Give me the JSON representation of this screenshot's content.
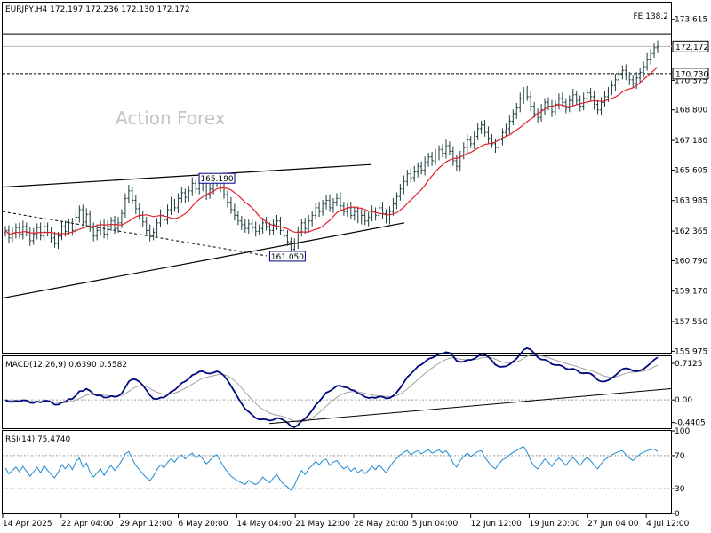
{
  "chart_data": [
    {
      "type": "candlestick",
      "symbol_label": "EURJPY,H4",
      "ohlc": {
        "open": "172.197",
        "high": "172.236",
        "low": "172.130",
        "close": "172.172"
      },
      "watermark": "Action Forex",
      "fe_label": "FE 138.2",
      "y_ticks": [
        "173.615",
        "170.375",
        "168.800",
        "167.180",
        "165.605",
        "163.985",
        "162.365",
        "160.790",
        "159.170",
        "157.550",
        "155.975"
      ],
      "y_tick_values": [
        173.615,
        170.375,
        168.8,
        167.18,
        165.605,
        163.985,
        162.365,
        160.79,
        159.17,
        157.55,
        155.975
      ],
      "ylim": [
        155.9,
        174.5
      ],
      "x_ticks": [
        "14 Apr 2025",
        "22 Apr 04:00",
        "29 Apr 12:00",
        "6 May 20:00",
        "14 May 04:00",
        "21 May 12:00",
        "28 May 20:00",
        "5 Jun 04:00",
        "12 Jun 12:00",
        "19 Jun 20:00",
        "27 Jun 04:00",
        "4 Jul 12:00"
      ],
      "current_price": {
        "value": 172.172,
        "label": "172.172"
      },
      "level_170": {
        "value": 170.73,
        "label": "170.730"
      },
      "fe_level": 172.84,
      "annotations": [
        {
          "label": "165.190",
          "value": 165.19,
          "bar": 60
        },
        {
          "label": "161.050",
          "value": 161.05,
          "bar": 80
        }
      ],
      "closes": [
        162.4,
        162.0,
        162.25,
        162.55,
        162.2,
        162.6,
        162.3,
        161.85,
        162.2,
        162.55,
        162.1,
        162.6,
        162.3,
        162.0,
        161.7,
        162.1,
        162.6,
        162.35,
        162.8,
        162.4,
        163.1,
        163.5,
        162.85,
        163.25,
        162.55,
        162.1,
        162.4,
        162.7,
        162.2,
        162.6,
        162.9,
        162.5,
        162.8,
        163.3,
        164.1,
        164.5,
        164.0,
        163.55,
        163.2,
        162.85,
        162.4,
        162.1,
        162.3,
        162.8,
        163.2,
        162.95,
        163.5,
        163.85,
        163.6,
        164.1,
        164.4,
        164.15,
        164.5,
        164.9,
        164.6,
        164.95,
        164.7,
        164.3,
        164.6,
        164.95,
        165.15,
        164.7,
        164.3,
        163.9,
        163.5,
        163.2,
        162.9,
        162.7,
        162.5,
        162.75,
        162.55,
        162.35,
        162.5,
        162.8,
        162.6,
        162.4,
        162.7,
        162.9,
        162.4,
        162.1,
        161.8,
        161.4,
        161.7,
        162.3,
        162.8,
        162.5,
        162.9,
        163.2,
        163.6,
        163.4,
        163.8,
        164.0,
        163.6,
        163.9,
        164.1,
        163.7,
        163.4,
        163.6,
        163.2,
        163.4,
        163.0,
        163.2,
        162.9,
        163.1,
        163.4,
        163.2,
        163.6,
        163.3,
        163.0,
        163.4,
        163.8,
        164.2,
        164.6,
        165.0,
        165.4,
        165.2,
        165.5,
        165.8,
        165.6,
        166.0,
        166.3,
        166.1,
        166.4,
        166.7,
        166.5,
        166.9,
        166.6,
        166.1,
        165.8,
        166.4,
        166.8,
        167.2,
        167.0,
        167.4,
        167.8,
        168.0,
        167.6,
        167.3,
        167.0,
        166.8,
        167.2,
        167.6,
        167.8,
        168.2,
        168.6,
        168.9,
        169.4,
        169.8,
        169.5,
        169.0,
        168.6,
        168.4,
        168.8,
        169.2,
        169.0,
        168.7,
        169.1,
        169.4,
        169.2,
        168.9,
        169.3,
        169.6,
        169.3,
        169.0,
        169.4,
        169.7,
        169.5,
        169.1,
        168.8,
        169.2,
        169.5,
        169.8,
        170.1,
        170.4,
        170.7,
        170.9,
        170.6,
        170.4,
        170.2,
        170.5,
        170.8,
        171.1,
        171.5,
        171.8,
        172.1,
        172.17
      ],
      "rsi_values": [
        55,
        48,
        52,
        56,
        50,
        57,
        51,
        45,
        50,
        56,
        49,
        58,
        52,
        47,
        43,
        50,
        59,
        54,
        60,
        53,
        63,
        67,
        56,
        61,
        50,
        44,
        49,
        54,
        46,
        53,
        58,
        52,
        57,
        64,
        72,
        75,
        66,
        58,
        53,
        48,
        43,
        40,
        45,
        53,
        59,
        55,
        62,
        66,
        62,
        68,
        71,
        66,
        70,
        73,
        67,
        71,
        66,
        60,
        64,
        69,
        71,
        63,
        56,
        50,
        45,
        42,
        39,
        37,
        35,
        40,
        37,
        35,
        38,
        44,
        40,
        37,
        43,
        47,
        40,
        35,
        32,
        28,
        34,
        44,
        52,
        47,
        54,
        58,
        63,
        59,
        64,
        66,
        58,
        62,
        64,
        58,
        54,
        57,
        51,
        55,
        49,
        53,
        48,
        52,
        57,
        53,
        59,
        54,
        49,
        56,
        62,
        67,
        71,
        74,
        76,
        71,
        74,
        76,
        72,
        75,
        77,
        73,
        75,
        77,
        73,
        76,
        70,
        61,
        56,
        64,
        69,
        73,
        69,
        72,
        75,
        76,
        68,
        62,
        57,
        54,
        60,
        65,
        67,
        71,
        74,
        76,
        79,
        81,
        74,
        64,
        57,
        54,
        60,
        66,
        62,
        57,
        63,
        67,
        63,
        58,
        64,
        68,
        63,
        58,
        64,
        68,
        64,
        58,
        54,
        60,
        65,
        68,
        71,
        73,
        75,
        76,
        71,
        67,
        64,
        68,
        72,
        74,
        76,
        77,
        78,
        75
      ],
      "macd": {
        "label": "MACD(12,26,9) 0.6390 0.5582",
        "y_ticks": [
          "0.7125",
          "0.00",
          "-0.4405"
        ],
        "y_tick_values": [
          0.7125,
          0.0,
          -0.4405
        ],
        "ylim": [
          -0.55,
          0.85
        ]
      },
      "rsi": {
        "label": "RSI(14) 75.4740",
        "y_ticks": [
          "100",
          "70",
          "30",
          "0"
        ],
        "y_tick_values": [
          100,
          70,
          30,
          0
        ],
        "ylim": [
          0,
          100
        ]
      },
      "colors": {
        "bars": "#1c3d3d",
        "ma": "#e0202a",
        "macd": "#000a80",
        "signal": "#a0a0a0",
        "rsi": "#1e8bd2",
        "trend": "#000000",
        "annotation_border": "#00008b"
      }
    }
  ]
}
